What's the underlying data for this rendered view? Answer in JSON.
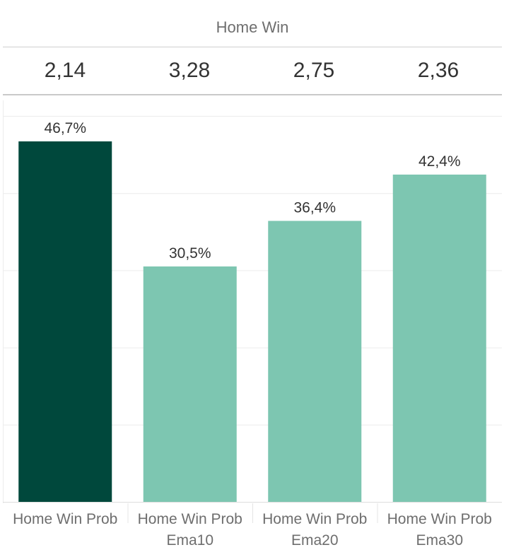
{
  "header": {
    "title": "Home Win"
  },
  "odds": [
    "2,14",
    "3,28",
    "2,75",
    "2,36"
  ],
  "colors": {
    "highlight": "#00483c",
    "bar": "#7dc6b1",
    "grid": "#ececec"
  },
  "chart_data": {
    "type": "bar",
    "title": "Home Win",
    "categories": [
      [
        "Home Win Prob"
      ],
      [
        "Home Win Prob",
        "Ema10"
      ],
      [
        "Home Win Prob",
        "Ema20"
      ],
      [
        "Home Win Prob",
        "Ema30"
      ]
    ],
    "values": [
      46.7,
      30.5,
      36.4,
      42.4
    ],
    "data_labels": [
      "46,7%",
      "30,5%",
      "36,4%",
      "42,4%"
    ],
    "highlight_index": 0,
    "ylim": [
      0,
      50
    ],
    "grid": true,
    "y_tick_labels_visible": false
  }
}
